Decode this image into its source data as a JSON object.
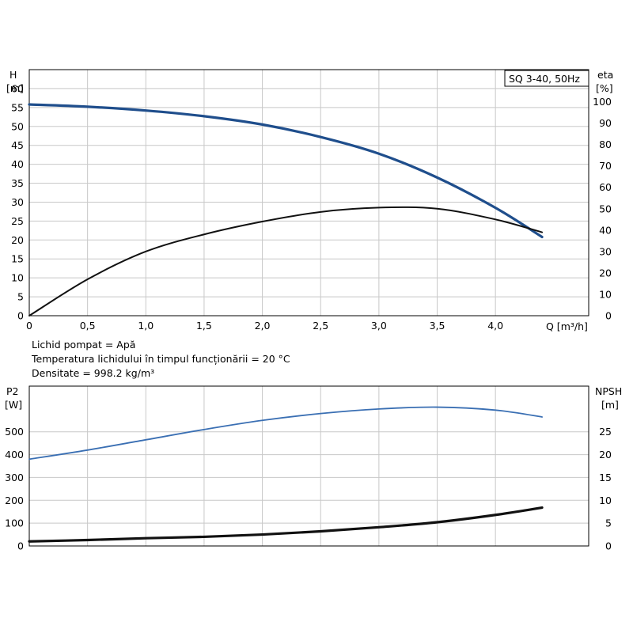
{
  "model_label": "SQ 3-40, 50Hz",
  "info": {
    "line1": "Lichid pompat = Apă",
    "line2": "Temperatura lichidului în timpul funcționării = 20 °C",
    "line3": "Densitate = 998.2 kg/m³"
  },
  "chart_data": [
    {
      "type": "line",
      "title": "",
      "xlabel": "Q [m³/h]",
      "ylabel_left": [
        "H",
        "[m]"
      ],
      "ylabel_right": [
        "eta",
        "[%]"
      ],
      "xlim": [
        0,
        4.8
      ],
      "ylim_left": [
        0,
        65
      ],
      "ylim_right": [
        0,
        115
      ],
      "x_ticks": [
        "0",
        "0,5",
        "1,0",
        "1,5",
        "2,0",
        "2,5",
        "3,0",
        "3,5",
        "4,0"
      ],
      "y_ticks_left": [
        "0",
        "5",
        "10",
        "15",
        "20",
        "25",
        "30",
        "35",
        "40",
        "45",
        "50",
        "55",
        "60"
      ],
      "y_ticks_right": [
        "0",
        "10",
        "20",
        "30",
        "40",
        "50",
        "60",
        "70",
        "80",
        "90",
        "100"
      ],
      "grid": true,
      "series": [
        {
          "name": "H",
          "axis": "left",
          "color": "#1f4e8c",
          "x": [
            0,
            0.5,
            1.0,
            1.5,
            2.0,
            2.5,
            3.0,
            3.5,
            4.0,
            4.4
          ],
          "y": [
            55.8,
            55.2,
            54.2,
            52.7,
            50.5,
            47.2,
            42.8,
            36.5,
            28.5,
            20.8
          ]
        },
        {
          "name": "eta",
          "axis": "right",
          "color": "#111111",
          "x": [
            0,
            0.5,
            1.0,
            1.5,
            2.0,
            2.5,
            3.0,
            3.5,
            4.0,
            4.4
          ],
          "y": [
            0,
            17,
            30,
            38,
            44,
            48.5,
            50.5,
            50,
            45,
            39
          ]
        }
      ]
    },
    {
      "type": "line",
      "title": "",
      "xlabel": "",
      "ylabel_left": [
        "P2",
        "[W]"
      ],
      "ylabel_right": [
        "NPSH",
        "[m]"
      ],
      "xlim": [
        0,
        4.8
      ],
      "ylim_left": [
        0,
        700
      ],
      "ylim_right": [
        0,
        35
      ],
      "y_ticks_left": [
        "0",
        "100",
        "200",
        "300",
        "400",
        "500"
      ],
      "y_ticks_right": [
        "0",
        "5",
        "10",
        "15",
        "20",
        "25"
      ],
      "grid": true,
      "series": [
        {
          "name": "P2",
          "axis": "left",
          "color": "#3a6fb3",
          "x": [
            0,
            0.5,
            1.0,
            1.5,
            2.0,
            2.5,
            3.0,
            3.5,
            4.0,
            4.4
          ],
          "y": [
            380,
            420,
            465,
            510,
            550,
            580,
            600,
            608,
            595,
            565
          ]
        },
        {
          "name": "NPSH",
          "axis": "right",
          "color": "#111111",
          "x": [
            0,
            0.5,
            1.0,
            1.5,
            2.0,
            2.5,
            3.0,
            3.5,
            4.0,
            4.4
          ],
          "y": [
            1.0,
            1.3,
            1.7,
            2.0,
            2.5,
            3.2,
            4.1,
            5.2,
            6.8,
            8.4
          ]
        }
      ]
    }
  ]
}
